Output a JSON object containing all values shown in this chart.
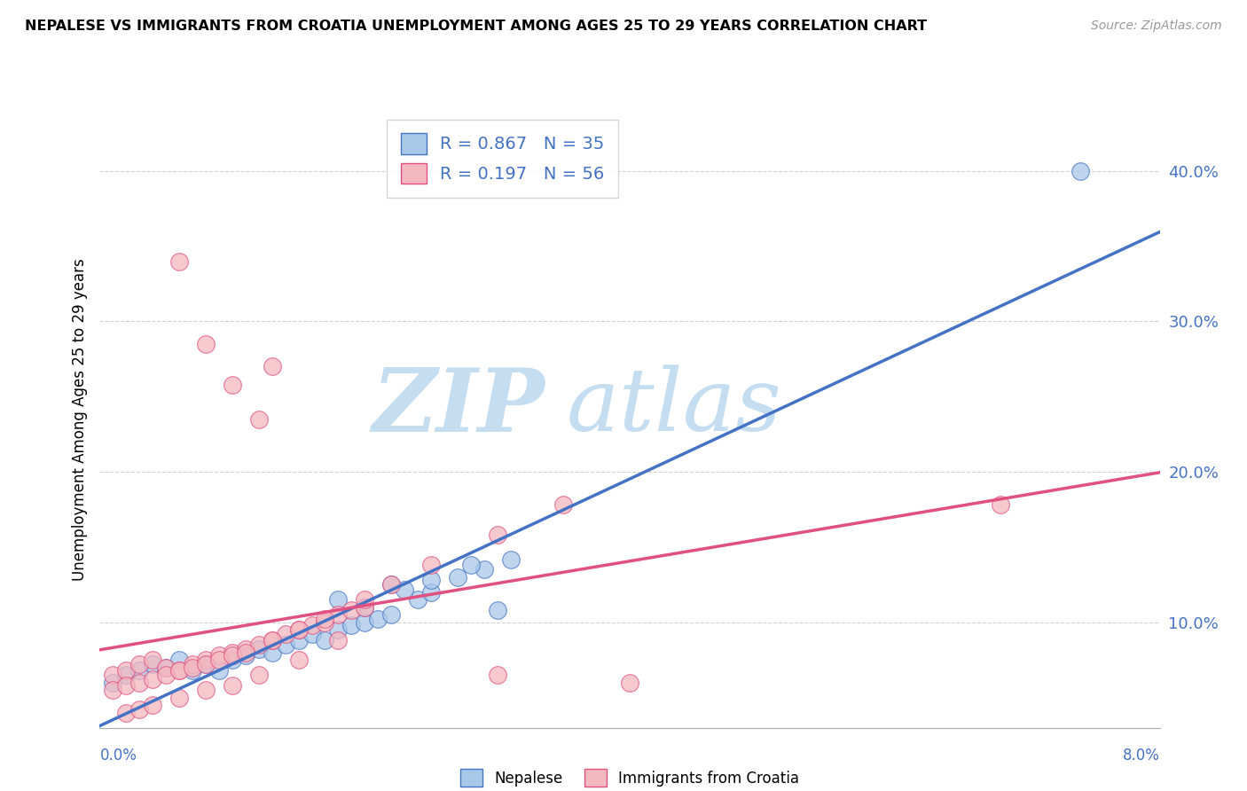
{
  "title": "NEPALESE VS IMMIGRANTS FROM CROATIA UNEMPLOYMENT AMONG AGES 25 TO 29 YEARS CORRELATION CHART",
  "source": "Source: ZipAtlas.com",
  "ylabel": "Unemployment Among Ages 25 to 29 years",
  "x_range": [
    0.0,
    0.08
  ],
  "y_range": [
    0.03,
    0.44
  ],
  "nepalese_R": "0.867",
  "nepalese_N": "35",
  "croatia_R": "0.197",
  "croatia_N": "56",
  "nepalese_color": "#a8c8e8",
  "croatia_color": "#f4b8c0",
  "nepalese_line_color": "#4472c4",
  "croatia_line_color": "#e05080",
  "nepalese_x": [
    0.001,
    0.002,
    0.003,
    0.004,
    0.005,
    0.006,
    0.007,
    0.008,
    0.009,
    0.01,
    0.011,
    0.012,
    0.013,
    0.014,
    0.015,
    0.016,
    0.017,
    0.018,
    0.019,
    0.02,
    0.021,
    0.022,
    0.024,
    0.025,
    0.027,
    0.029,
    0.031,
    0.022,
    0.018,
    0.02,
    0.023,
    0.025,
    0.028,
    0.074,
    0.03
  ],
  "nepalese_y": [
    0.06,
    0.065,
    0.068,
    0.072,
    0.07,
    0.075,
    0.068,
    0.072,
    0.068,
    0.075,
    0.078,
    0.082,
    0.08,
    0.085,
    0.088,
    0.092,
    0.088,
    0.095,
    0.098,
    0.1,
    0.102,
    0.105,
    0.115,
    0.12,
    0.13,
    0.135,
    0.142,
    0.125,
    0.115,
    0.11,
    0.122,
    0.128,
    0.138,
    0.4,
    0.108
  ],
  "croatia_x": [
    0.001,
    0.002,
    0.003,
    0.004,
    0.005,
    0.006,
    0.007,
    0.008,
    0.009,
    0.01,
    0.011,
    0.012,
    0.013,
    0.014,
    0.015,
    0.016,
    0.017,
    0.018,
    0.019,
    0.02,
    0.001,
    0.002,
    0.003,
    0.004,
    0.005,
    0.006,
    0.007,
    0.008,
    0.009,
    0.01,
    0.011,
    0.013,
    0.015,
    0.017,
    0.02,
    0.022,
    0.025,
    0.03,
    0.035,
    0.002,
    0.003,
    0.004,
    0.006,
    0.008,
    0.01,
    0.012,
    0.015,
    0.018,
    0.006,
    0.008,
    0.01,
    0.012,
    0.013,
    0.03,
    0.068,
    0.04
  ],
  "croatia_y": [
    0.065,
    0.068,
    0.072,
    0.075,
    0.07,
    0.068,
    0.072,
    0.075,
    0.078,
    0.08,
    0.082,
    0.085,
    0.088,
    0.092,
    0.095,
    0.098,
    0.1,
    0.105,
    0.108,
    0.11,
    0.055,
    0.058,
    0.06,
    0.062,
    0.065,
    0.068,
    0.07,
    0.072,
    0.075,
    0.078,
    0.08,
    0.088,
    0.095,
    0.102,
    0.115,
    0.125,
    0.138,
    0.158,
    0.178,
    0.04,
    0.042,
    0.045,
    0.05,
    0.055,
    0.058,
    0.065,
    0.075,
    0.088,
    0.34,
    0.285,
    0.258,
    0.235,
    0.27,
    0.065,
    0.178,
    0.06
  ],
  "watermark_zip": "ZIP",
  "watermark_atlas": "atlas",
  "background_color": "#ffffff",
  "grid_color": "#cccccc",
  "legend_nepalese_label": "Nepalese",
  "legend_croatia_label": "Immigrants from Croatia"
}
